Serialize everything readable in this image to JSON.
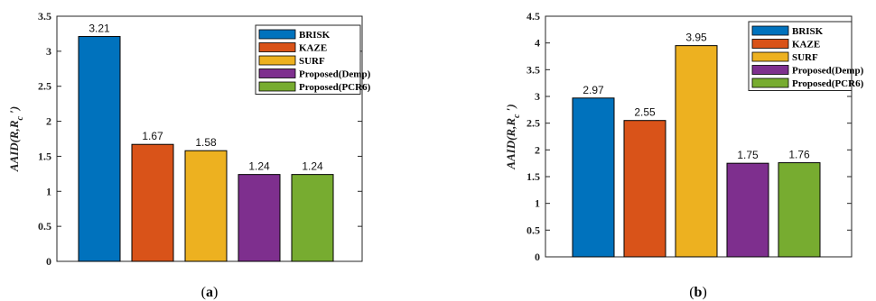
{
  "chart_data": [
    {
      "type": "bar",
      "categories": [
        "BRISK",
        "KAZE",
        "SURF",
        "Proposed(Demp)",
        "Proposed(PCR6)"
      ],
      "values": [
        3.21,
        1.67,
        1.58,
        1.24,
        1.24
      ],
      "value_labels": [
        "3.21",
        "1.67",
        "1.58",
        "1.24",
        "1.24"
      ],
      "colors": [
        "#0072BD",
        "#D95319",
        "#EDB120",
        "#7E2F8E",
        "#77AC30"
      ],
      "ylabel": "AAID(R,R c ')",
      "ylim": [
        0,
        3.5
      ],
      "yticks": [
        "0",
        "0.5",
        "1",
        "1.5",
        "2",
        "2.5",
        "3",
        "3.5"
      ],
      "legend_entries": [
        "BRISK",
        "KAZE",
        "SURF",
        "Proposed(Demp)",
        "Proposed(PCR6)"
      ],
      "legend_position": "top-right",
      "grid": false,
      "caption": "(a)"
    },
    {
      "type": "bar",
      "categories": [
        "BRISK",
        "KAZE",
        "SURF",
        "Proposed(Demp)",
        "Proposed(PCR6)"
      ],
      "values": [
        2.97,
        2.55,
        3.95,
        1.75,
        1.76
      ],
      "value_labels": [
        "2.97",
        "2.55",
        "3.95",
        "1.75",
        "1.76"
      ],
      "colors": [
        "#0072BD",
        "#D95319",
        "#EDB120",
        "#7E2F8E",
        "#77AC30"
      ],
      "ylabel": "AAID(R,R c ')",
      "ylim": [
        0,
        4.5
      ],
      "yticks": [
        "0",
        "0.5",
        "1",
        "1.5",
        "2",
        "2.5",
        "3",
        "3.5",
        "4",
        "4.5"
      ],
      "legend_entries": [
        "BRISK",
        "KAZE",
        "SURF",
        "Proposed(Demp)",
        "Proposed(PCR6)"
      ],
      "legend_position": "top-right",
      "grid": false,
      "caption": "(b)"
    }
  ]
}
